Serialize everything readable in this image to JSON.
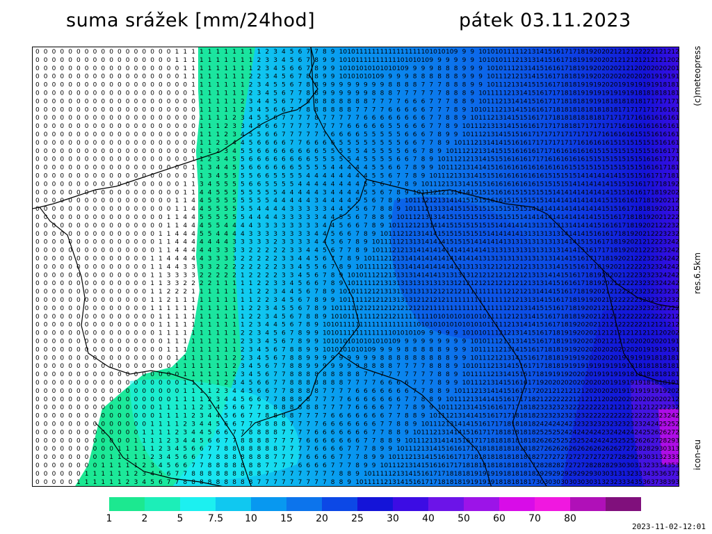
{
  "header": {
    "title_left": "suma srážek [mm/24hod]",
    "title_right": "pátek 03.11.2023"
  },
  "side_labels": {
    "credit": "(c)meteopress",
    "resolution": "res.6.5km",
    "model": "icon-eu"
  },
  "legend": {
    "labels": [
      "1",
      "2",
      "5",
      "7.5",
      "10",
      "15",
      "20",
      "25",
      "30",
      "40",
      "50",
      "60",
      "70",
      "80"
    ],
    "colors": [
      "#1ce890",
      "#1ceeb8",
      "#1cf0f0",
      "#10c8f0",
      "#0898f0",
      "#0c74ec",
      "#0c48e6",
      "#1414d8",
      "#3c0ce4",
      "#6c14e8",
      "#9c14e8",
      "#d80ce8",
      "#f018e0",
      "#b010b8",
      "#80107c"
    ]
  },
  "timestamp": "2023-11-02-12:01"
}
